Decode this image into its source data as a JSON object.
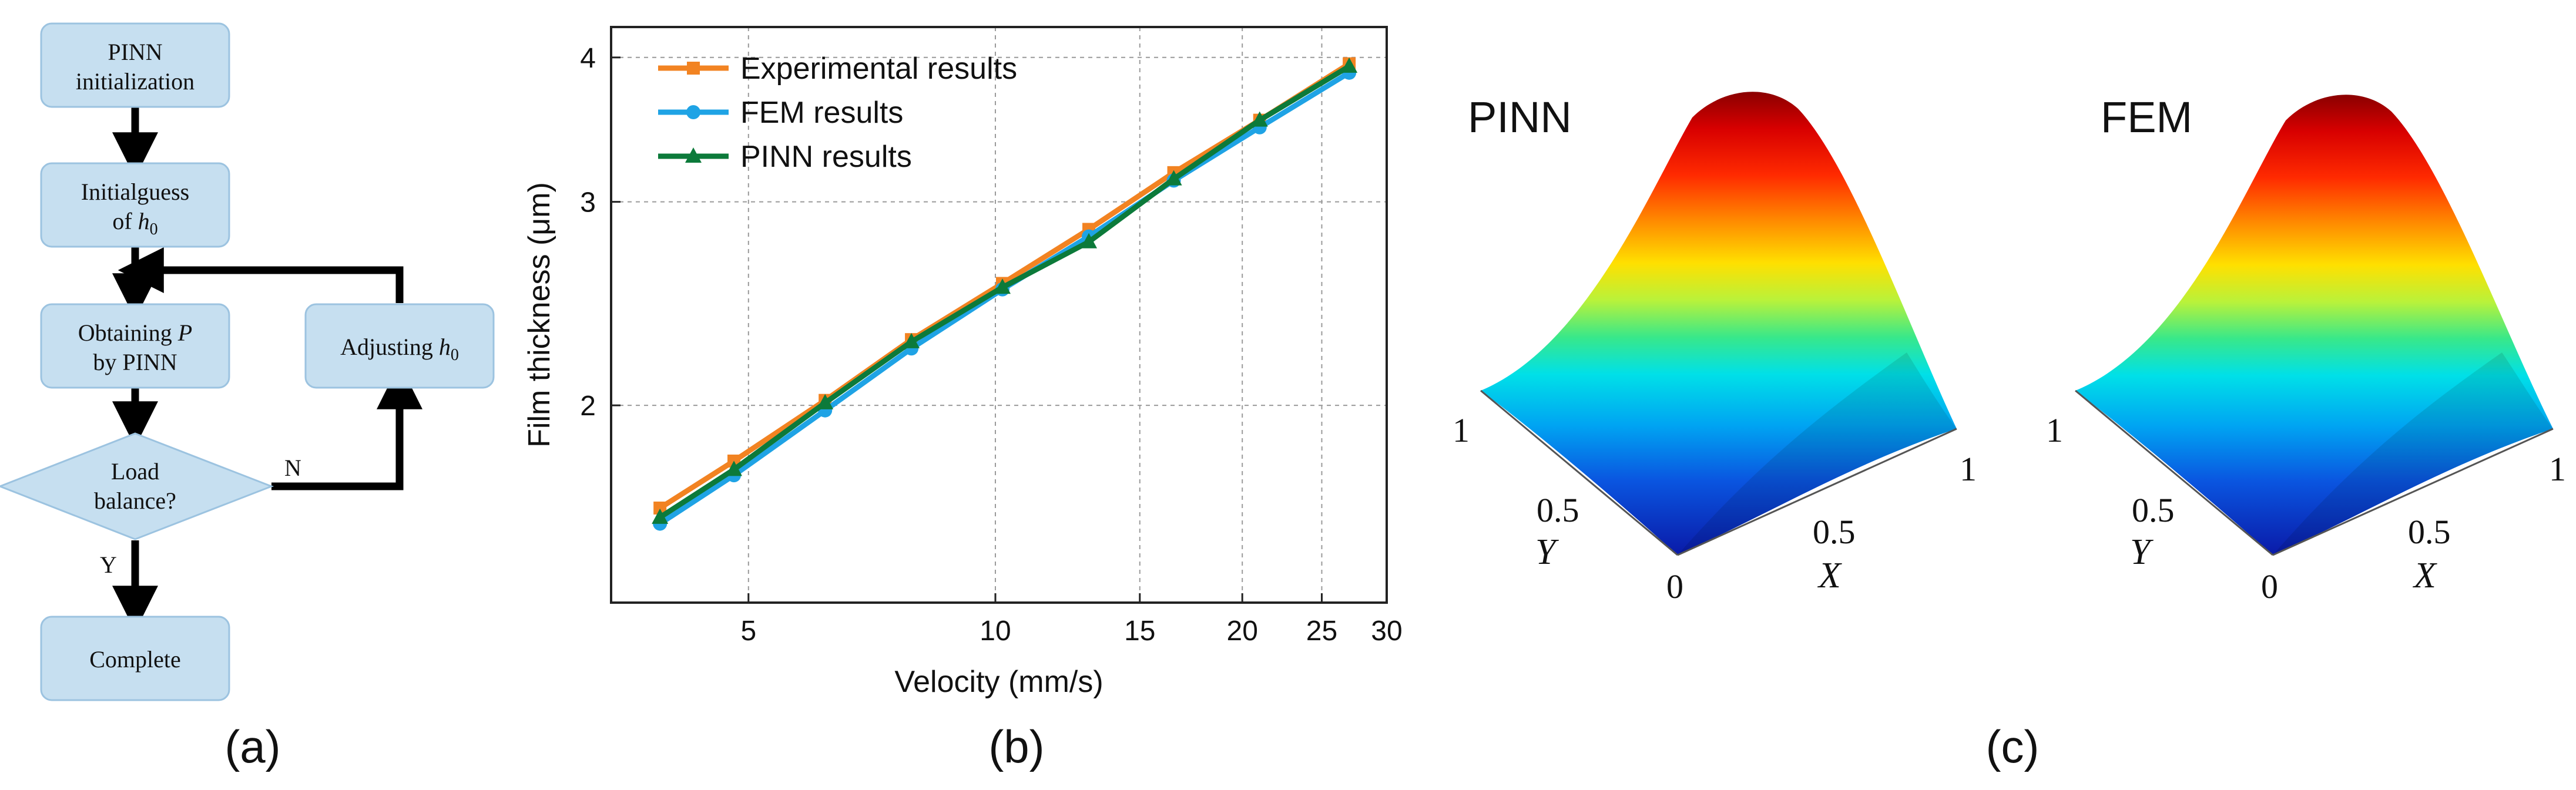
{
  "panel_a": {
    "caption": "(a)",
    "nodes": {
      "init": [
        "PINN",
        "initialization"
      ],
      "guess": {
        "line1": "Initialguess",
        "line2_prefix": "of ",
        "line2_var": "h",
        "line2_sub": "0"
      },
      "obtain": {
        "line1_prefix": "Obtaining ",
        "line1_var": "P",
        "line2": "by PINN"
      },
      "adjust": {
        "prefix": "Adjusting ",
        "var": "h",
        "sub": "0"
      },
      "decision": [
        "Load",
        "balance?"
      ],
      "complete": "Complete"
    },
    "edge_labels": {
      "no": "N",
      "yes": "Y"
    },
    "colors": {
      "box_fill": "#c6dff0",
      "box_stroke": "#9cc3e0",
      "arrow": "#000000"
    }
  },
  "panel_b": {
    "caption": "(b)",
    "chart_data": {
      "type": "line",
      "xlabel": "Velocity (mm/s)",
      "ylabel": "Film thickness (μm)",
      "x_scale": "log",
      "y_scale": "log",
      "xlim": [
        3.4,
        30
      ],
      "ylim": [
        1.35,
        4.25
      ],
      "x_ticks": [
        5,
        10,
        15,
        20,
        25,
        30
      ],
      "y_ticks": [
        2,
        3,
        4
      ],
      "grid": true,
      "legend_position": "top-left",
      "x": [
        3.9,
        4.8,
        6.2,
        7.9,
        10.2,
        13.0,
        16.5,
        21.0,
        27.0
      ],
      "series": [
        {
          "name": "Experimental results",
          "color": "#f28322",
          "marker": "square",
          "values": [
            1.63,
            1.79,
            2.02,
            2.28,
            2.55,
            2.84,
            3.18,
            3.53,
            3.95
          ]
        },
        {
          "name": "FEM results",
          "color": "#1fa3e5",
          "marker": "circle",
          "values": [
            1.58,
            1.74,
            1.98,
            2.24,
            2.52,
            2.8,
            3.13,
            3.48,
            3.88
          ]
        },
        {
          "name": "PINN results",
          "color": "#0c7a3a",
          "marker": "triangle",
          "values": [
            1.6,
            1.76,
            2.01,
            2.27,
            2.53,
            2.77,
            3.14,
            3.53,
            3.93
          ]
        }
      ]
    }
  },
  "panel_c": {
    "caption": "(c)",
    "left_title": "PINN",
    "right_title": "FEM",
    "axes": {
      "y_label": "Y",
      "x_label": "X",
      "t1_left": "1",
      "t05_left": "0.5",
      "t0": "0",
      "t05_right": "0.5",
      "t1_right": "1"
    }
  }
}
